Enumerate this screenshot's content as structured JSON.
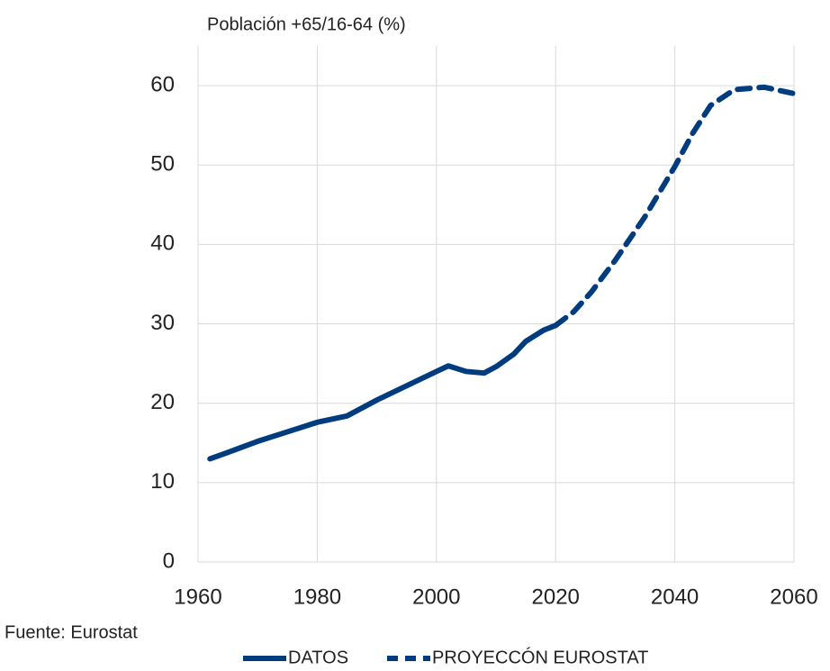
{
  "chart_data": {
    "type": "line",
    "y_axis_label": "Población +65/16-64 (%)",
    "source": "Fuente: Eurostat",
    "series": [
      {
        "name": "DATOS",
        "color": "#003c7e",
        "style": "solid",
        "x": [
          1962,
          1965,
          1970,
          1975,
          1980,
          1985,
          1990,
          1995,
          2000,
          2002,
          2005,
          2008,
          2010,
          2013,
          2015,
          2018,
          2020
        ],
        "values": [
          13.0,
          13.8,
          15.2,
          16.4,
          17.6,
          18.4,
          20.4,
          22.2,
          24.0,
          24.7,
          24.0,
          23.8,
          24.6,
          26.2,
          27.8,
          29.2,
          29.8
        ]
      },
      {
        "name": "PROYECCÓN EUROSTAT",
        "color": "#003c7e",
        "style": "dashed",
        "x": [
          2020,
          2023,
          2026,
          2030,
          2035,
          2040,
          2043,
          2046,
          2050,
          2055,
          2060
        ],
        "values": [
          29.8,
          31.5,
          34.0,
          38.0,
          43.5,
          49.8,
          54.0,
          57.5,
          59.5,
          59.8,
          59.0
        ]
      }
    ],
    "xlim": [
      1960,
      2060
    ],
    "xticks": [
      1960,
      1980,
      2000,
      2020,
      2040,
      2060
    ],
    "ylim": [
      0,
      65
    ],
    "yticks": [
      0,
      10,
      20,
      30,
      40,
      50,
      60
    ],
    "grid": true,
    "legend": "bottom"
  }
}
